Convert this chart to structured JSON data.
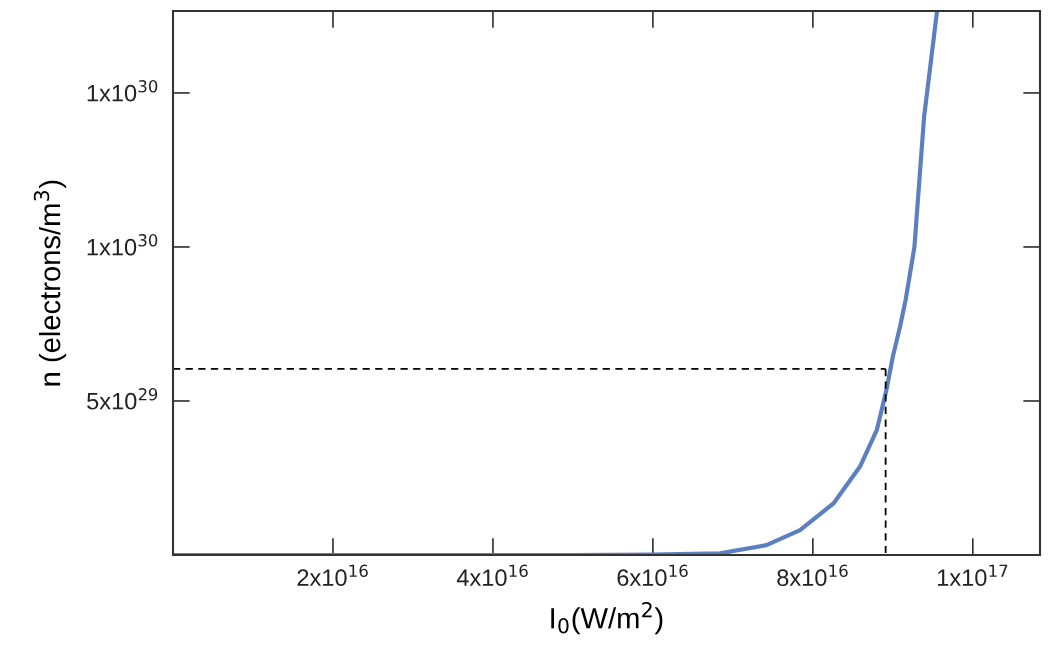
{
  "chart_data": {
    "type": "line",
    "xlabel": "I$_{0}$(W/m$^{2}$)",
    "ylabel": "n (electrons/m$^{3}$)",
    "xlim": [
      0,
      1.084e+17
    ],
    "ylim": [
      0,
      1.766e+30
    ],
    "xticks": [
      {
        "value": 2e+16,
        "label": "2x10$^{16}$"
      },
      {
        "value": 4e+16,
        "label": "4x10$^{16}$"
      },
      {
        "value": 6e+16,
        "label": "6x10$^{16}$"
      },
      {
        "value": 8e+16,
        "label": "8x10$^{16}$"
      },
      {
        "value": 1e+17,
        "label": "1x10$^{17}$"
      }
    ],
    "yticks": [
      {
        "value": 5e+29,
        "label": "5x10$^{29}$"
      },
      {
        "value": 1e+30,
        "label": "1x10$^{30}$"
      },
      {
        "value": 1.5e+30,
        "label": "1x10$^{30}$"
      }
    ],
    "grid": false,
    "legend": false,
    "marker": "none",
    "series": [
      {
        "color": "#5b7fbf",
        "line_style": "solid",
        "x": [
          0,
          4e+16,
          5e+16,
          6e+16,
          6.84e+16,
          7.42e+16,
          7.84e+16,
          8.26e+16,
          8.59e+16,
          8.8e+16,
          8.92e+16,
          9e+16,
          9.09e+16,
          9.16e+16,
          9.27e+16,
          9.39e+16,
          9.55e+16
        ],
        "values": [
          0,
          0,
          1e+26,
          1e+27,
          5.5e+27,
          3.2e+28,
          8.1e+28,
          1.68e+29,
          2.87e+29,
          4.06e+29,
          5.36e+29,
          6.44e+29,
          7.41e+29,
          8.28e+29,
          1e+30,
          1.42e+30,
          1.76e+30
        ]
      },
      {
        "color": "#000000",
        "line_style": "dashed",
        "x": [
          0,
          8.91e+16
        ],
        "values": [
          6.04e+29,
          6.04e+29
        ]
      },
      {
        "color": "#000000",
        "line_style": "dashed",
        "x": [
          8.91e+16,
          8.91e+16
        ],
        "values": [
          6.04e+29,
          0
        ]
      }
    ]
  }
}
